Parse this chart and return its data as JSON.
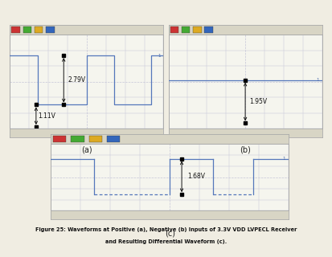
{
  "bg_color": "#f0ede2",
  "scope_bg": "#f5f5ee",
  "scope_header_bg": "#d8d5c5",
  "scope_footer_bg": "#d8d5c5",
  "grid_major_color": "#c5c5d8",
  "grid_minor_color": "#dcdce8",
  "waveform_color": "#5577bb",
  "annotation_color": "#111111",
  "label_a": "(a)",
  "label_b": "(b)",
  "label_c": "(c)",
  "caption_line1": "Figure 25: Waveforms at Positive (a), Negative (b) Inputs of 3.3V VDD LVPECL Receiver",
  "caption_line2": "and Resulting Differential Waveform (c).",
  "panel_a": {
    "voltage_high": 2.79,
    "voltage_low": 1.11,
    "annotation_high": "2.79V",
    "annotation_low": "1.11V",
    "ylim": [
      0.3,
      3.5
    ],
    "xlim": [
      0,
      10
    ],
    "wave_x": [
      0,
      1.8,
      1.8,
      5.0,
      5.0,
      6.8,
      6.8,
      9.2,
      9.2,
      10
    ],
    "wave_y_key": "a"
  },
  "panel_b": {
    "voltage_level": 1.95,
    "annotation": "1.95V",
    "ylim": [
      0.3,
      3.5
    ],
    "xlim": [
      0,
      10
    ]
  },
  "panel_c": {
    "voltage_high": 1.68,
    "voltage_low": 0.18,
    "annotation": "1.68V",
    "ylim": [
      -0.5,
      2.3
    ],
    "xlim": [
      0,
      10
    ],
    "wave_x": [
      0,
      1.8,
      1.8,
      5.0,
      5.0,
      6.8,
      6.8,
      9.2,
      9.2,
      10
    ],
    "wave_y_key": "c"
  },
  "header_colors": [
    "#cc3333",
    "#44aa33",
    "#ddaa22",
    "#3366bb"
  ],
  "scope_border_color": "#aaaaaa"
}
